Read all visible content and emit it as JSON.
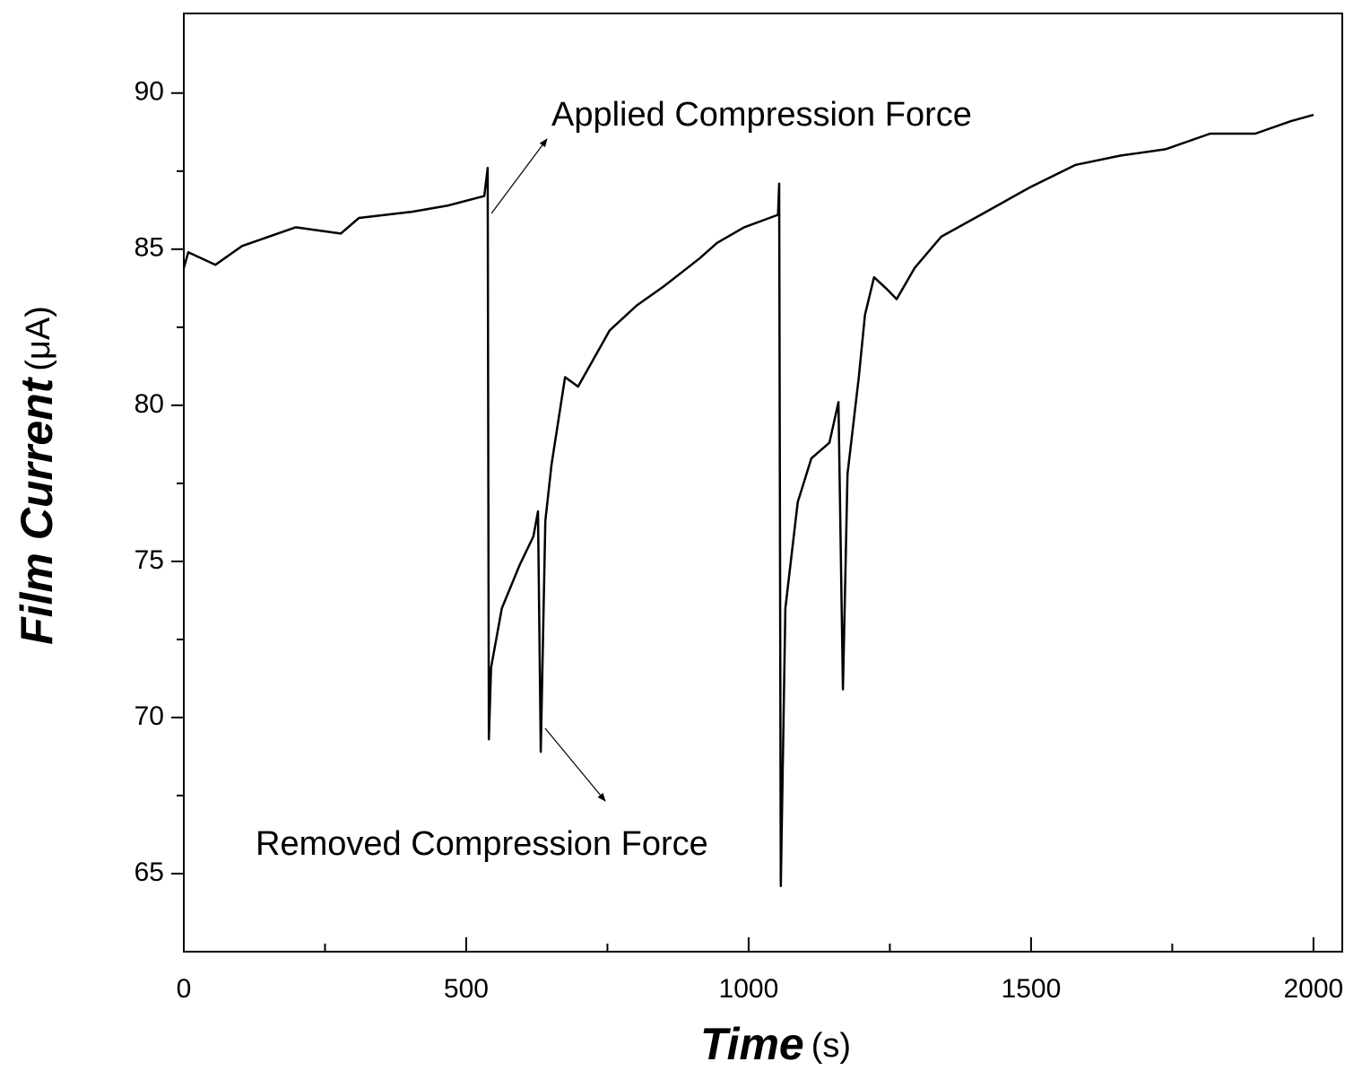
{
  "chart_data": {
    "type": "line",
    "xlabel": "Time",
    "xlabel_unit": "(s)",
    "ylabel": "Film Current",
    "ylabel_unit": "(μA)",
    "annotations": [
      "Applied Compression Force",
      "Removed Compression Force"
    ],
    "color": "#000000",
    "x": [
      0,
      8,
      56,
      103,
      198,
      278,
      310,
      405,
      468,
      532,
      538,
      540,
      544,
      563,
      595,
      619,
      627,
      632,
      640,
      651,
      675,
      698,
      754,
      802,
      849,
      913,
      944,
      992,
      1052,
      1054,
      1057,
      1065,
      1087,
      1111,
      1143,
      1159,
      1167,
      1175,
      1195,
      1206,
      1222,
      1246,
      1262,
      1294,
      1341,
      1421,
      1500,
      1579,
      1659,
      1738,
      1817,
      1897,
      1960,
      2000
    ],
    "values": [
      84.4,
      84.9,
      84.5,
      85.1,
      85.7,
      85.5,
      86.0,
      86.2,
      86.4,
      86.7,
      87.6,
      69.3,
      71.6,
      73.5,
      74.9,
      75.8,
      76.6,
      68.9,
      76.3,
      78.1,
      80.9,
      80.6,
      82.4,
      83.2,
      83.8,
      84.7,
      85.2,
      85.7,
      86.1,
      87.1,
      64.6,
      73.5,
      76.9,
      78.3,
      78.8,
      80.1,
      70.9,
      77.8,
      80.9,
      82.9,
      84.1,
      83.7,
      83.4,
      84.4,
      85.4,
      86.2,
      87.0,
      87.7,
      88.0,
      88.2,
      88.7,
      88.7,
      89.1,
      89.3
    ],
    "xlim": [
      0,
      2051
    ],
    "ylim": [
      62.5,
      92.55
    ],
    "xticks": [
      0,
      500,
      1000,
      1500,
      2000
    ],
    "xminorticks": [
      250,
      750,
      1250,
      1750
    ],
    "yticks": [
      65,
      70,
      75,
      80,
      85,
      90
    ],
    "yminorticks": [
      67.5,
      72.5,
      77.5,
      82.5,
      87.5
    ]
  }
}
